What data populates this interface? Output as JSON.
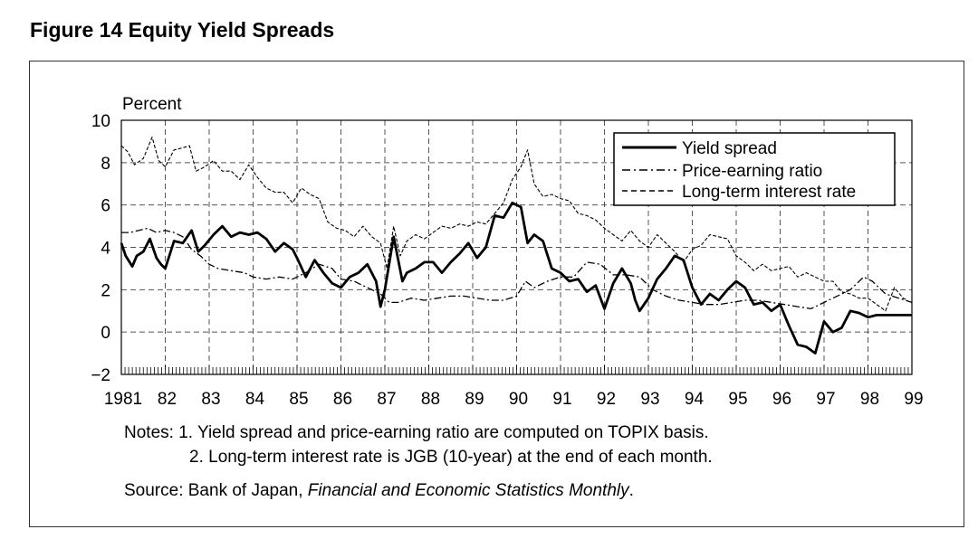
{
  "figure": {
    "title": "Figure 14  Equity Yield Spreads"
  },
  "notes": {
    "line1": "Notes: 1. Yield spread and price-earning ratio are computed on TOPIX basis.",
    "line2": "2. Long-term interest rate is JGB (10-year) at the end of each month.",
    "source_prefix": "Source: Bank of Japan, ",
    "source_title": "Financial and Economic Statistics Monthly",
    "source_suffix": "."
  },
  "chart_data": {
    "type": "line",
    "title": "Figure 14  Equity Yield Spreads",
    "xlabel": "",
    "ylabel": "Percent",
    "ylim": [
      -2,
      10
    ],
    "xlim": [
      1981,
      1999
    ],
    "yticks": [
      "10",
      "8",
      "6",
      "4",
      "2",
      "0",
      "−2"
    ],
    "xtick_labels": [
      "1981",
      "82",
      "83",
      "84",
      "85",
      "86",
      "87",
      "88",
      "89",
      "90",
      "91",
      "92",
      "93",
      "94",
      "95",
      "96",
      "97",
      "98",
      "99"
    ],
    "grid": true,
    "legend_position": "top-right",
    "colors": {
      "line": "#000000",
      "grid": "#555555"
    },
    "series": [
      {
        "name": "Yield spread",
        "style": "solid",
        "x": [
          1981.0,
          1981.1,
          1981.25,
          1981.35,
          1981.5,
          1981.65,
          1981.8,
          1981.9,
          1982.0,
          1982.2,
          1982.4,
          1982.6,
          1982.75,
          1982.9,
          1983.1,
          1983.3,
          1983.5,
          1983.7,
          1983.9,
          1984.1,
          1984.3,
          1984.5,
          1984.7,
          1984.9,
          1985.0,
          1985.2,
          1985.4,
          1985.6,
          1985.8,
          1986.0,
          1986.2,
          1986.4,
          1986.6,
          1986.8,
          1986.9,
          1987.0,
          1987.2,
          1987.4,
          1987.5,
          1987.7,
          1987.9,
          1988.1,
          1988.3,
          1988.5,
          1988.7,
          1988.9,
          1989.1,
          1989.3,
          1989.5,
          1989.7,
          1989.9,
          1990.1,
          1990.25,
          1990.4,
          1990.6,
          1990.8,
          1991.0,
          1991.2,
          1991.4,
          1991.6,
          1991.8,
          1992.0,
          1992.2,
          1992.4,
          1992.6,
          1992.7,
          1992.8,
          1993.0,
          1993.2,
          1993.4,
          1993.6,
          1993.8,
          1994.0,
          1994.2,
          1994.4,
          1994.6,
          1994.8,
          1995.0,
          1995.2,
          1995.4,
          1995.6,
          1995.8,
          1996.0,
          1996.2,
          1996.4,
          1996.6,
          1996.8,
          1997.0,
          1997.2,
          1997.4,
          1997.6,
          1997.8,
          1998.0,
          1998.2,
          1998.4,
          1998.6,
          1998.8,
          1999.0
        ],
        "values": [
          4.2,
          3.6,
          3.1,
          3.6,
          3.8,
          4.4,
          3.5,
          3.2,
          3.0,
          4.3,
          4.2,
          4.8,
          3.8,
          4.1,
          4.6,
          5.0,
          4.5,
          4.7,
          4.6,
          4.7,
          4.4,
          3.8,
          4.2,
          3.9,
          3.5,
          2.6,
          3.4,
          2.8,
          2.3,
          2.1,
          2.6,
          2.8,
          3.2,
          2.4,
          1.2,
          2.0,
          4.5,
          2.4,
          2.8,
          3.0,
          3.3,
          3.3,
          2.8,
          3.3,
          3.7,
          4.2,
          3.5,
          4.0,
          5.5,
          5.4,
          6.1,
          5.9,
          4.2,
          4.6,
          4.3,
          3.0,
          2.8,
          2.4,
          2.5,
          1.9,
          2.2,
          1.1,
          2.3,
          3.0,
          2.3,
          1.5,
          1.0,
          1.6,
          2.5,
          3.0,
          3.6,
          3.4,
          2.1,
          1.3,
          1.8,
          1.5,
          2.0,
          2.4,
          2.1,
          1.3,
          1.4,
          1.0,
          1.3,
          0.3,
          -0.6,
          -0.7,
          -1.0,
          0.5,
          0.0,
          0.2,
          1.0,
          0.9,
          0.7,
          0.8,
          0.8,
          0.8,
          0.8,
          0.8
        ]
      },
      {
        "name": "Price-earning ratio",
        "style": "dashdot",
        "x": [
          1981.0,
          1981.2,
          1981.4,
          1981.6,
          1981.8,
          1982.0,
          1982.2,
          1982.4,
          1982.6,
          1982.8,
          1983.0,
          1983.2,
          1983.5,
          1983.8,
          1984.0,
          1984.3,
          1984.6,
          1984.9,
          1985.2,
          1985.5,
          1985.8,
          1986.0,
          1986.3,
          1986.6,
          1986.9,
          1987.1,
          1987.3,
          1987.6,
          1987.9,
          1988.2,
          1988.5,
          1988.8,
          1989.1,
          1989.4,
          1989.7,
          1990.0,
          1990.2,
          1990.4,
          1990.7,
          1991.0,
          1991.3,
          1991.6,
          1991.9,
          1992.2,
          1992.5,
          1992.8,
          1993.1,
          1993.4,
          1993.7,
          1994.0,
          1994.3,
          1994.6,
          1994.9,
          1995.2,
          1995.5,
          1995.8,
          1996.1,
          1996.4,
          1996.7,
          1997.0,
          1997.3,
          1997.6,
          1997.9,
          1998.1,
          1998.4,
          1998.7,
          1999.0
        ],
        "values": [
          4.7,
          4.7,
          4.8,
          4.9,
          4.7,
          4.8,
          4.7,
          4.5,
          3.9,
          3.6,
          3.2,
          3.0,
          2.9,
          2.8,
          2.6,
          2.5,
          2.6,
          2.5,
          2.8,
          3.2,
          3.0,
          2.5,
          2.4,
          2.1,
          1.8,
          1.4,
          1.4,
          1.6,
          1.5,
          1.6,
          1.7,
          1.7,
          1.6,
          1.5,
          1.5,
          1.7,
          2.4,
          2.1,
          2.4,
          2.6,
          2.6,
          3.3,
          3.2,
          2.7,
          2.7,
          2.6,
          2.0,
          1.7,
          1.5,
          1.4,
          1.3,
          1.3,
          1.4,
          1.5,
          1.5,
          1.4,
          1.3,
          1.2,
          1.1,
          1.4,
          1.7,
          2.0,
          2.6,
          2.4,
          1.8,
          1.6,
          1.4
        ]
      },
      {
        "name": "Long-term interest rate",
        "style": "dashed",
        "x": [
          1981.0,
          1981.15,
          1981.3,
          1981.5,
          1981.7,
          1981.85,
          1982.0,
          1982.2,
          1982.4,
          1982.55,
          1982.7,
          1982.9,
          1983.1,
          1983.3,
          1983.5,
          1983.7,
          1983.9,
          1984.1,
          1984.3,
          1984.5,
          1984.7,
          1984.9,
          1985.1,
          1985.3,
          1985.5,
          1985.7,
          1985.9,
          1986.1,
          1986.3,
          1986.5,
          1986.7,
          1986.9,
          1987.05,
          1987.2,
          1987.35,
          1987.5,
          1987.7,
          1987.9,
          1988.1,
          1988.3,
          1988.5,
          1988.7,
          1988.9,
          1989.1,
          1989.3,
          1989.5,
          1989.7,
          1989.9,
          1990.1,
          1990.25,
          1990.4,
          1990.6,
          1990.8,
          1991.0,
          1991.2,
          1991.4,
          1991.6,
          1991.8,
          1992.0,
          1992.2,
          1992.4,
          1992.6,
          1992.8,
          1993.0,
          1993.2,
          1993.4,
          1993.6,
          1993.8,
          1994.0,
          1994.2,
          1994.4,
          1994.6,
          1994.8,
          1995.0,
          1995.2,
          1995.4,
          1995.6,
          1995.8,
          1996.0,
          1996.2,
          1996.4,
          1996.6,
          1996.8,
          1997.0,
          1997.2,
          1997.4,
          1997.6,
          1997.8,
          1998.0,
          1998.2,
          1998.4,
          1998.6,
          1998.8,
          1998.9
        ],
        "values": [
          8.8,
          8.5,
          7.9,
          8.2,
          9.2,
          8.1,
          7.8,
          8.6,
          8.7,
          8.8,
          7.6,
          7.8,
          8.1,
          7.6,
          7.6,
          7.2,
          7.9,
          7.3,
          6.8,
          6.6,
          6.6,
          6.1,
          6.8,
          6.5,
          6.3,
          5.2,
          4.9,
          4.8,
          4.5,
          5.0,
          4.5,
          4.2,
          3.0,
          5.0,
          3.6,
          4.3,
          4.6,
          4.4,
          4.7,
          5.0,
          4.9,
          5.1,
          5.0,
          5.2,
          5.1,
          5.6,
          6.1,
          7.2,
          7.8,
          8.6,
          7.0,
          6.4,
          6.5,
          6.3,
          6.2,
          5.6,
          5.5,
          5.3,
          4.9,
          4.6,
          4.3,
          4.8,
          4.3,
          4.0,
          4.6,
          4.2,
          3.8,
          3.3,
          3.9,
          4.1,
          4.6,
          4.5,
          4.4,
          3.6,
          3.3,
          2.9,
          3.2,
          2.9,
          3.0,
          3.1,
          2.6,
          2.8,
          2.6,
          2.4,
          2.4,
          1.9,
          1.8,
          1.6,
          1.6,
          1.3,
          1.0,
          2.1,
          1.6,
          1.5
        ]
      }
    ]
  }
}
